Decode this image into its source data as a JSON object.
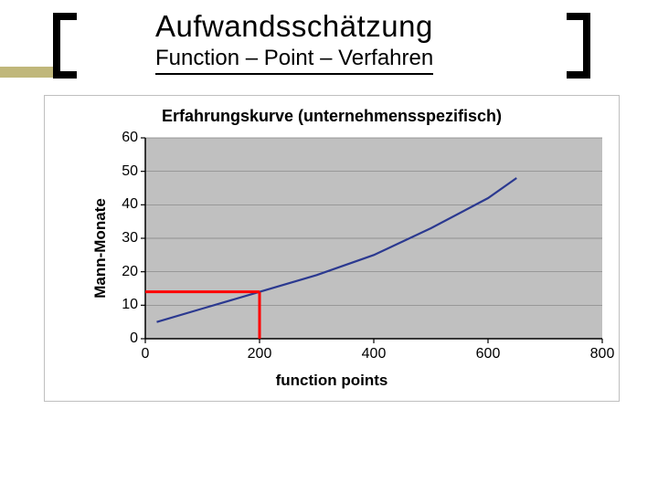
{
  "header": {
    "title": "Aufwandsschätzung",
    "subtitle": "Function – Point – Verfahren",
    "title_fontsize": 33,
    "subtitle_fontsize": 24,
    "title_color": "#000000",
    "bracket_color": "#000000",
    "bracket_stroke": 8,
    "accent_color": "#c0b77a"
  },
  "chart": {
    "type": "line",
    "title": "Erfahrungskurve (unternehmensspezifisch)",
    "title_fontsize": 18,
    "title_weight": "bold",
    "xlabel": "function points",
    "ylabel": "Mann-Monate",
    "label_fontsize": 17,
    "label_weight": "bold",
    "background_color": "#ffffff",
    "plot_bg_color": "#c0c0c0",
    "border_color": "#bfbfbf",
    "axis_color": "#000000",
    "grid_color": "#808080",
    "xlim": [
      0,
      800
    ],
    "ylim": [
      0,
      60
    ],
    "xticks": [
      0,
      200,
      400,
      600,
      800
    ],
    "yticks": [
      0,
      10,
      20,
      30,
      40,
      50,
      60
    ],
    "tick_fontsize": 16,
    "series": {
      "color": "#2b3990",
      "stroke_width": 2.2,
      "points_x": [
        20,
        100,
        200,
        300,
        400,
        500,
        600,
        650
      ],
      "points_y": [
        5,
        9,
        14,
        19,
        25,
        33,
        42,
        48
      ]
    },
    "annotation": {
      "color": "#ff0000",
      "stroke_width": 3,
      "v_x": 200,
      "v_y0": 0,
      "v_y1": 14,
      "h_y": 14,
      "h_x0": 0,
      "h_x1": 200
    }
  }
}
